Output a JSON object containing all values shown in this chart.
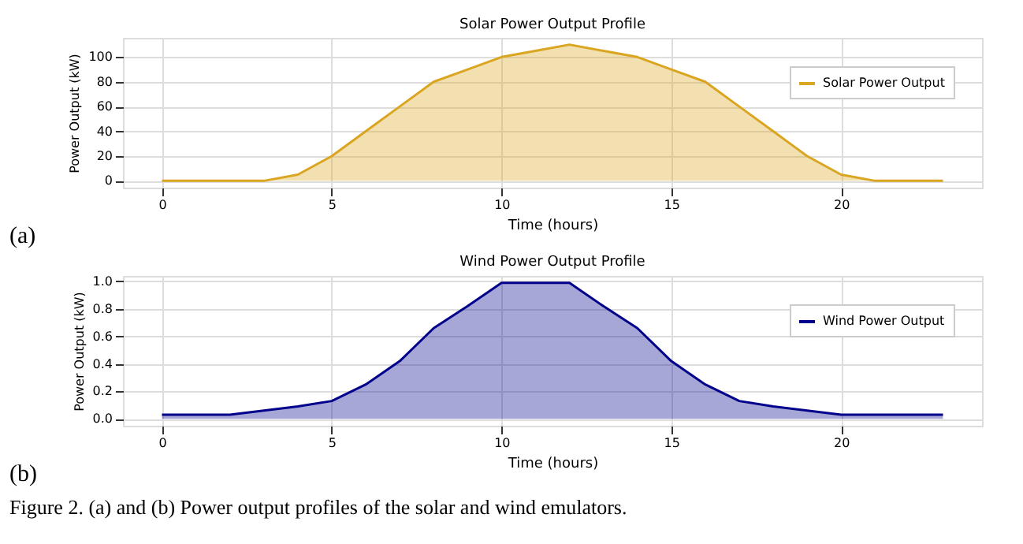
{
  "chart_data": [
    {
      "type": "area",
      "title": "Solar Power Output Profile",
      "xlabel": "Time (hours)",
      "ylabel": "Power Output (kW)",
      "x": [
        0,
        1,
        2,
        3,
        4,
        5,
        6,
        7,
        8,
        9,
        10,
        11,
        12,
        13,
        14,
        15,
        16,
        17,
        18,
        19,
        20,
        21,
        22,
        23
      ],
      "series": [
        {
          "name": "Solar Power Output",
          "color": "#daa520",
          "values": [
            0,
            0,
            0,
            0,
            5,
            20,
            40,
            60,
            80,
            90,
            100,
            105,
            110,
            105,
            100,
            90,
            80,
            60,
            40,
            20,
            5,
            0,
            0,
            0
          ]
        }
      ],
      "xlim": [
        -1.15,
        24.15
      ],
      "xticks": [
        0,
        5,
        10,
        15,
        20
      ],
      "ylim": [
        -5.5,
        115.5
      ],
      "yticks": [
        0,
        20,
        40,
        60,
        80,
        100
      ],
      "grid": true,
      "legend": "top right",
      "annotations": [
        "(a)"
      ]
    },
    {
      "type": "area",
      "title": "Wind Power Output Profile",
      "xlabel": "Time (hours)",
      "ylabel": "Power Output (kW)",
      "x": [
        0,
        1,
        2,
        3,
        4,
        5,
        6,
        7,
        8,
        9,
        10,
        11,
        12,
        13,
        14,
        15,
        16,
        17,
        18,
        19,
        20,
        21,
        22,
        23
      ],
      "series": [
        {
          "name": "Wind Power Output",
          "color": "#00008b",
          "values": [
            0.03,
            0.03,
            0.03,
            0.06,
            0.09,
            0.13,
            0.25,
            0.42,
            0.66,
            0.82,
            0.99,
            0.99,
            0.99,
            0.82,
            0.66,
            0.42,
            0.25,
            0.13,
            0.09,
            0.06,
            0.03,
            0.03,
            0.03,
            0.03
          ]
        }
      ],
      "xlim": [
        -1.15,
        24.15
      ],
      "xticks": [
        0,
        5,
        10,
        15,
        20
      ],
      "ylim": [
        -0.05,
        1.04
      ],
      "yticks": [
        {
          "value": 0,
          "label": "0.0"
        },
        {
          "value": 0.2,
          "label": "0.2"
        },
        {
          "value": 0.4,
          "label": "0.4"
        },
        {
          "value": 0.6,
          "label": "0.6"
        },
        {
          "value": 0.8,
          "label": "0.8"
        },
        {
          "value": 1,
          "label": "1.0"
        }
      ],
      "grid": true,
      "legend": "top right",
      "annotations": [
        "(b)",
        "Figure 2. (a) and (b) Power output profiles of the solar and wind emulators."
      ]
    }
  ]
}
